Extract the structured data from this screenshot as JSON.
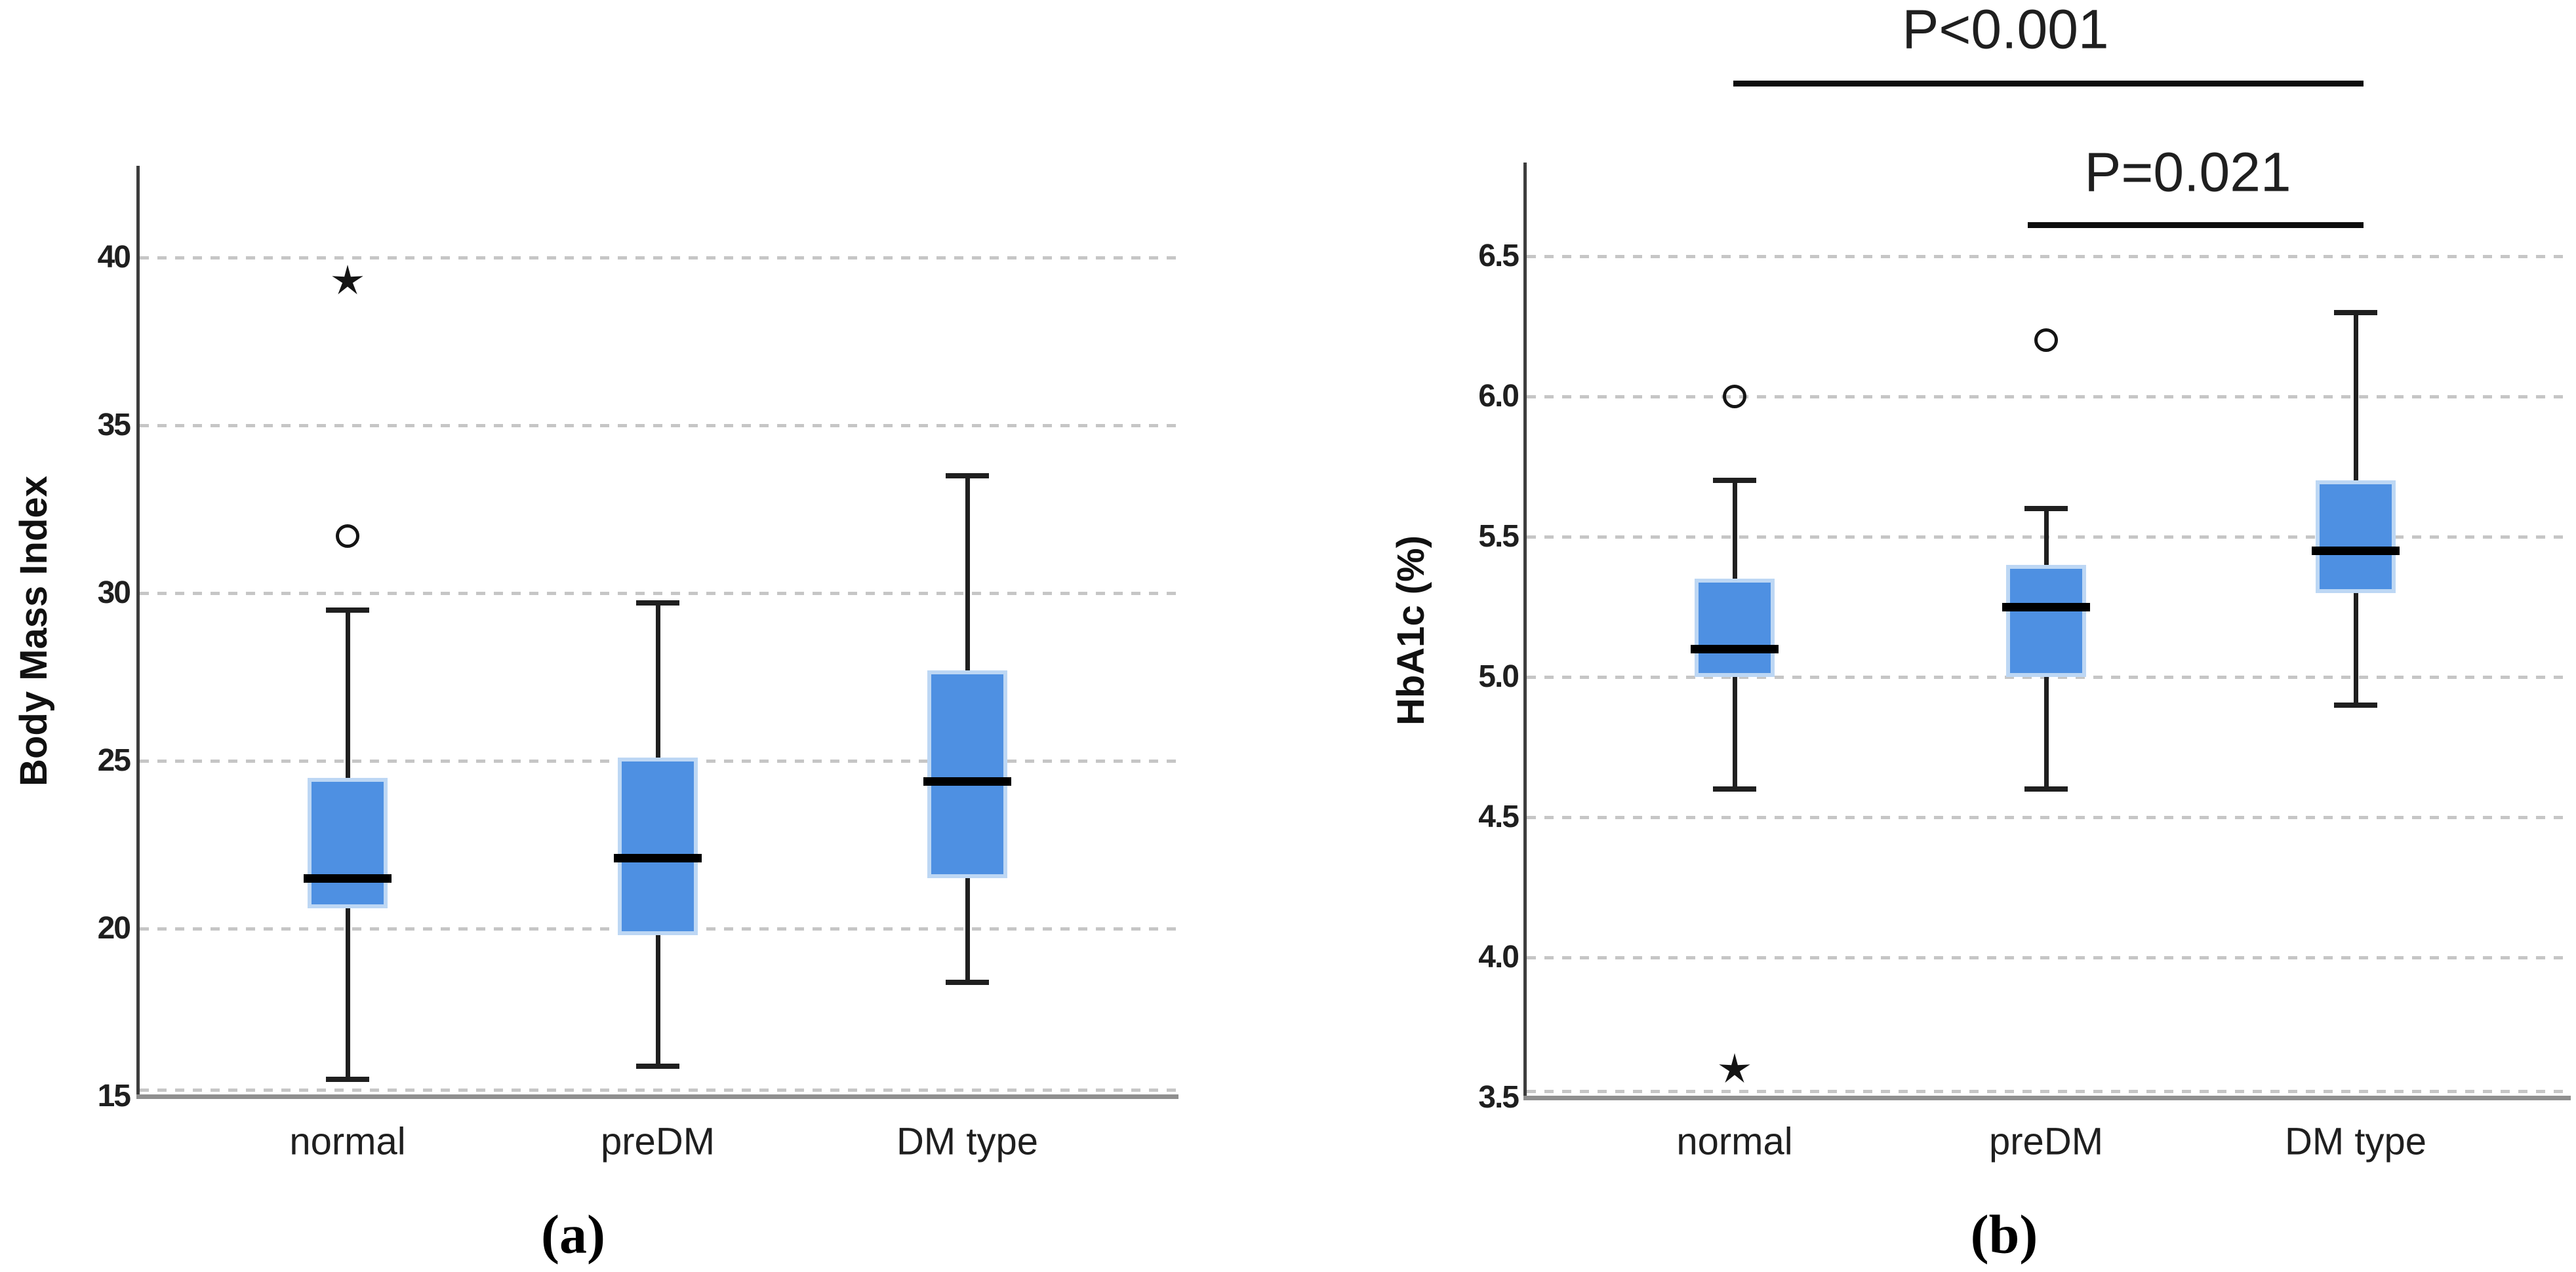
{
  "colors": {
    "box_fill": "#4e90e2",
    "box_border": "#bdd7f4",
    "median_line": "#000000",
    "whisker": "#1f1f1f",
    "gridline": "#c6c6c6",
    "y_axis_line": "#3d3d3d",
    "x_axis_line": "#8f8f8f",
    "text": "#1f1f1f",
    "annotation_line": "#0d0d0d"
  },
  "chart_data": [
    {
      "type": "boxplot",
      "panel_label": "(a)",
      "title": "",
      "xlabel": "",
      "ylabel": "Body Mass Index",
      "ylim": [
        15,
        42.8
      ],
      "yticks": [
        "15",
        "20",
        "25",
        "30",
        "35",
        "40"
      ],
      "grid": "horizontal dashed",
      "legend_position": "none",
      "categories": [
        "normal",
        "preDM",
        "DM type"
      ],
      "boxes": [
        {
          "category": "normal",
          "whisker_low": 15.5,
          "q1": 20.6,
          "median": 21.5,
          "q3": 24.5,
          "whisker_high": 29.5,
          "outliers_circle": [
            31.7
          ],
          "outliers_star": [
            39.3
          ]
        },
        {
          "category": "preDM",
          "whisker_low": 15.9,
          "q1": 19.8,
          "median": 22.1,
          "q3": 25.1,
          "whisker_high": 29.7,
          "outliers_circle": [],
          "outliers_star": []
        },
        {
          "category": "DM type",
          "whisker_low": 18.4,
          "q1": 21.5,
          "median": 24.4,
          "q3": 27.7,
          "whisker_high": 33.5,
          "outliers_circle": [],
          "outliers_star": []
        }
      ],
      "annotations": []
    },
    {
      "type": "boxplot",
      "panel_label": "(b)",
      "title": "",
      "xlabel": "",
      "ylabel": "HbA1c (%)",
      "ylim": [
        3.5,
        6.83
      ],
      "yticks": [
        "3.5",
        "4.0",
        "4.5",
        "5.0",
        "5.5",
        "6.0",
        "6.5"
      ],
      "grid": "horizontal dashed",
      "legend_position": "none",
      "categories": [
        "normal",
        "preDM",
        "DM type"
      ],
      "boxes": [
        {
          "category": "normal",
          "whisker_low": 4.6,
          "q1": 5.0,
          "median": 5.1,
          "q3": 5.35,
          "whisker_high": 5.7,
          "outliers_circle": [
            6.0
          ],
          "outliers_star": [
            3.6
          ]
        },
        {
          "category": "preDM",
          "whisker_low": 4.6,
          "q1": 5.0,
          "median": 5.25,
          "q3": 5.4,
          "whisker_high": 5.6,
          "outliers_circle": [
            6.2
          ],
          "outliers_star": []
        },
        {
          "category": "DM type",
          "whisker_low": 4.9,
          "q1": 5.3,
          "median": 5.45,
          "q3": 5.7,
          "whisker_high": 6.3,
          "outliers_circle": [],
          "outliers_star": []
        }
      ],
      "annotations": [
        {
          "label": "P<0.001",
          "from": "normal",
          "to": "DM type"
        },
        {
          "label": "P=0.021",
          "from": "preDM",
          "to": "DM type"
        }
      ]
    }
  ]
}
